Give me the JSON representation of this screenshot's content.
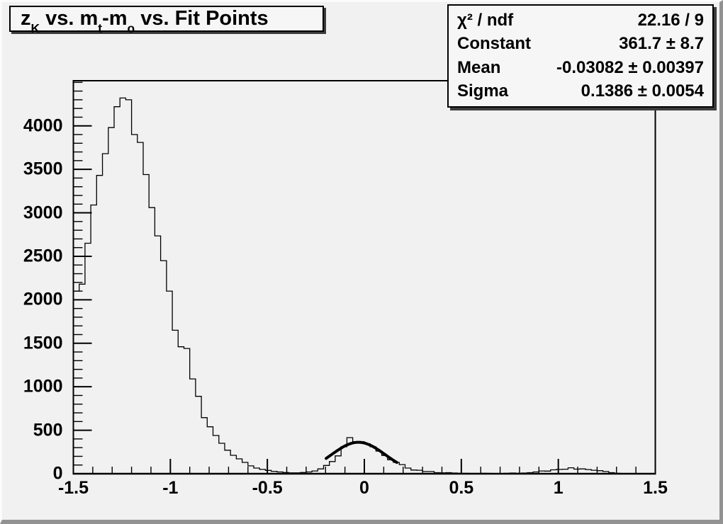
{
  "window": {
    "kind": "ROOT canvas histogram view"
  },
  "title_box": {
    "parts": [
      {
        "t": "z"
      },
      {
        "sub": "K"
      },
      {
        "t": " vs. m"
      },
      {
        "sub": "t"
      },
      {
        "t": "-m"
      },
      {
        "sub": "o"
      },
      {
        "t": " vs. Fit Points"
      }
    ],
    "plain_text": "zK vs. mt-mo vs. Fit Points"
  },
  "stats_box": {
    "rows": [
      {
        "label": "χ² / ndf",
        "value": "22.16 / 9"
      },
      {
        "label": "Constant",
        "value": "361.7 ± 8.7"
      },
      {
        "label": "Mean",
        "value": "-0.03082 ± 0.00397"
      },
      {
        "label": "Sigma",
        "value": "0.1386 ± 0.0054"
      }
    ]
  },
  "chart_data": {
    "type": "bar",
    "subtype": "histogram-step-outline",
    "title": "zK vs. mt-mo vs. Fit Points",
    "xlabel": "",
    "ylabel": "",
    "grid": false,
    "legend": false,
    "x_axis": {
      "range": [
        -1.5,
        1.5
      ],
      "major_ticks": [
        {
          "v": -1.5,
          "label": "-1.5"
        },
        {
          "v": -1.0,
          "label": "-1"
        },
        {
          "v": -0.5,
          "label": "-0.5"
        },
        {
          "v": 0.0,
          "label": "0"
        },
        {
          "v": 0.5,
          "label": "0.5"
        },
        {
          "v": 1.0,
          "label": "1"
        },
        {
          "v": 1.5,
          "label": "1.5"
        }
      ],
      "minor_step": 0.1
    },
    "y_axis": {
      "range": [
        0,
        4519
      ],
      "major_ticks": [
        {
          "v": 0,
          "label": "0"
        },
        {
          "v": 500,
          "label": "500"
        },
        {
          "v": 1000,
          "label": "1000"
        },
        {
          "v": 1500,
          "label": "1500"
        },
        {
          "v": 2000,
          "label": "2000"
        },
        {
          "v": 2500,
          "label": "2500"
        },
        {
          "v": 3000,
          "label": "3000"
        },
        {
          "v": 3500,
          "label": "3500"
        },
        {
          "v": 4000,
          "label": "4000"
        }
      ],
      "minor_step": 100
    },
    "bins": {
      "start": -1.5,
      "width": 0.03,
      "values": [
        2100,
        2180,
        2650,
        3090,
        3430,
        3680,
        3980,
        4220,
        4320,
        4300,
        3900,
        3810,
        3440,
        3060,
        2735,
        2450,
        2100,
        1650,
        1460,
        1440,
        1090,
        890,
        645,
        540,
        440,
        350,
        270,
        212,
        171,
        130,
        90,
        65,
        50,
        38,
        28,
        20,
        14,
        10,
        10,
        14,
        20,
        32,
        55,
        95,
        140,
        205,
        310,
        415,
        370,
        368,
        345,
        310,
        260,
        210,
        160,
        130,
        105,
        65,
        42,
        40,
        25,
        25,
        12,
        10,
        12,
        8,
        5,
        5,
        4,
        4,
        5,
        4,
        3,
        3,
        5,
        8,
        5,
        8,
        12,
        20,
        32,
        30,
        45,
        50,
        52,
        68,
        53,
        55,
        48,
        40,
        35,
        25,
        12,
        5,
        2,
        0,
        0,
        0,
        0,
        0
      ]
    },
    "fit": {
      "type": "gaussian",
      "chi2_ndf": "22.16 / 9",
      "constant": 361.7,
      "constant_err": 8.7,
      "mean": -0.03082,
      "mean_err": 0.00397,
      "sigma": 0.1386,
      "sigma_err": 0.0054,
      "draw_range": [
        -0.197,
        0.168
      ]
    },
    "colors": {
      "line": "#000000",
      "fit_line": "#000000",
      "canvas_bg": "#f1f1f1",
      "box_bg": "#f6f6f6"
    }
  }
}
